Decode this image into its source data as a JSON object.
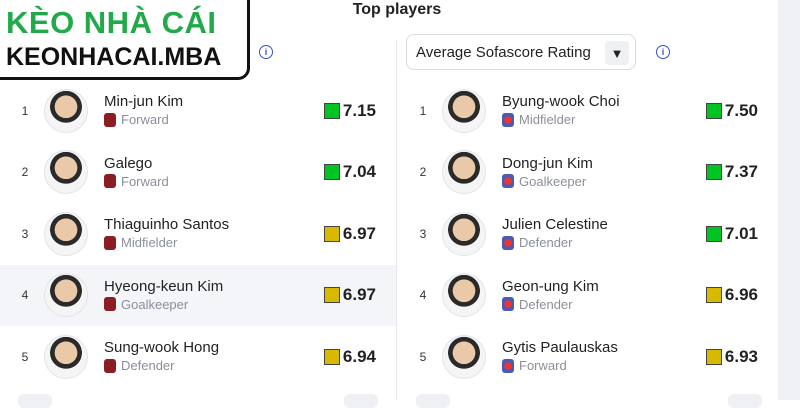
{
  "title": "Top players",
  "logo": {
    "line1": "KÈO NHÀ CÁI",
    "line2": "KEONHACAI.MBA"
  },
  "colors": {
    "green": "#00c424",
    "yellow": "#d9b800",
    "info": "#3b4fc4"
  },
  "right_select": {
    "value": "Average Sofascore Rating"
  },
  "left": [
    {
      "rank": "1",
      "name": "Min-jun Kim",
      "position": "Forward",
      "rating": "7.15",
      "color": "green"
    },
    {
      "rank": "2",
      "name": "Galego",
      "position": "Forward",
      "rating": "7.04",
      "color": "green"
    },
    {
      "rank": "3",
      "name": "Thiaguinho Santos",
      "position": "Midfielder",
      "rating": "6.97",
      "color": "yellow"
    },
    {
      "rank": "4",
      "name": "Hyeong-keun Kim",
      "position": "Goalkeeper",
      "rating": "6.97",
      "color": "yellow"
    },
    {
      "rank": "5",
      "name": "Sung-wook Hong",
      "position": "Defender",
      "rating": "6.94",
      "color": "yellow"
    }
  ],
  "right": [
    {
      "rank": "1",
      "name": "Byung-wook Choi",
      "position": "Midfielder",
      "rating": "7.50",
      "color": "green"
    },
    {
      "rank": "2",
      "name": "Dong-jun Kim",
      "position": "Goalkeeper",
      "rating": "7.37",
      "color": "green"
    },
    {
      "rank": "3",
      "name": "Julien Celestine",
      "position": "Defender",
      "rating": "7.01",
      "color": "green"
    },
    {
      "rank": "4",
      "name": "Geon-ung Kim",
      "position": "Defender",
      "rating": "6.96",
      "color": "yellow"
    },
    {
      "rank": "5",
      "name": "Gytis Paulauskas",
      "position": "Forward",
      "rating": "6.93",
      "color": "yellow"
    }
  ]
}
